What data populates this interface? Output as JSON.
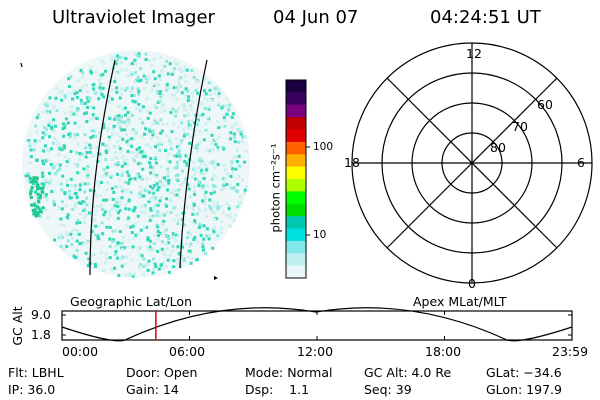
{
  "header": {
    "title": "Ultraviolet Imager",
    "date": "04 Jun 07",
    "time": "04:24:51 UT"
  },
  "colorbar": {
    "label": "photon cm⁻²s⁻¹",
    "ticks": [
      "100",
      "10"
    ],
    "colors": [
      "#1a0040",
      "#3a0060",
      "#7a0080",
      "#c00000",
      "#e00000",
      "#ff6000",
      "#ffb000",
      "#ffff00",
      "#b0ff00",
      "#00ff00",
      "#00e000",
      "#00c8b0",
      "#00e0e0",
      "#80e8e8",
      "#c0f0f0",
      "#e8f8f8"
    ]
  },
  "left_panel": {
    "caption": "Geographic Lat/Lon"
  },
  "right_panel": {
    "caption": "Apex MLat/MLT",
    "mlt_labels": {
      "top": "12",
      "left": "18",
      "right": "6",
      "bottom": "0"
    },
    "lat_labels": [
      "60",
      "70",
      "80"
    ]
  },
  "timeline": {
    "ylabel": "GC Alt",
    "yticks": [
      "9.0",
      "1.8"
    ],
    "xticks": [
      "00:00",
      "06:00",
      "12:00",
      "18:00",
      "23:59"
    ],
    "current_time_fraction": 0.184,
    "marker_color": "#e00000"
  },
  "info": [
    [
      "Flt: LBHL",
      "Door: Open",
      "Mode: Normal",
      "GC Alt: 4.0 Re",
      "GLat: −34.6"
    ],
    [
      "IP: 36.0",
      "Gain: 14",
      "Dsp:    1.1",
      "Seq: 39",
      "GLon: 197.9"
    ]
  ]
}
